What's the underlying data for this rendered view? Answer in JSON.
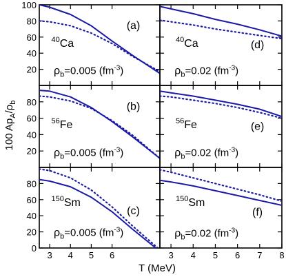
{
  "figure": {
    "ylabel": "100 Ap",
    "ylabel_sub1": "A",
    "ylabel_mid": "/ρ",
    "ylabel_sub2": "b",
    "xlabel": "T (MeV)"
  },
  "chart_data": [
    {
      "type": "line",
      "panel": "(a)",
      "nucleus_mass": "40",
      "nucleus": "Ca",
      "density_prefix": "ρ",
      "density_sub": "b",
      "density_value": "=0.005 (fm",
      "density_exp": "-3",
      "density_close": ")",
      "xlim": [
        2.5,
        8.3
      ],
      "ylim": [
        0,
        100
      ],
      "yticks": [
        20,
        40,
        60,
        80,
        100
      ],
      "yticklabels": [
        "20",
        "40",
        "60",
        "80",
        "100"
      ],
      "xticks": [
        3,
        4,
        5,
        6
      ],
      "xticklabels": [],
      "series": [
        {
          "style": "solid",
          "x": [
            2.5,
            3,
            4,
            5,
            6,
            7,
            8.3
          ],
          "y": [
            100,
            97,
            88,
            74,
            55,
            37,
            15
          ]
        },
        {
          "style": "dotted",
          "x": [
            2.5,
            3,
            4,
            5,
            6,
            7,
            8.3
          ],
          "y": [
            80,
            79,
            74,
            65,
            52,
            36,
            17
          ]
        }
      ]
    },
    {
      "type": "line",
      "panel": "(d)",
      "nucleus_mass": "40",
      "nucleus": "Ca",
      "density_prefix": "ρ",
      "density_sub": "b",
      "density_value": "=0.02 (fm",
      "density_exp": "-3",
      "density_close": ")",
      "xlim": [
        2.5,
        8
      ],
      "ylim": [
        0,
        100
      ],
      "yticks": [
        20,
        40,
        60,
        80,
        100
      ],
      "yticklabels": [],
      "xticks": [
        3,
        4,
        5,
        6,
        7,
        8
      ],
      "xticklabels": [],
      "series": [
        {
          "style": "solid",
          "x": [
            2.5,
            3,
            4,
            5,
            6,
            7,
            8
          ],
          "y": [
            98,
            95,
            89,
            82,
            76,
            69,
            61
          ]
        },
        {
          "style": "dotted",
          "x": [
            2.5,
            3,
            4,
            5,
            6,
            7,
            8
          ],
          "y": [
            81,
            79,
            75,
            70,
            66,
            62,
            58
          ]
        }
      ]
    },
    {
      "type": "line",
      "panel": "(b)",
      "nucleus_mass": "56",
      "nucleus": "Fe",
      "density_prefix": "ρ",
      "density_sub": "b",
      "density_value": "=0.005 (fm",
      "density_exp": "-3",
      "density_close": ")",
      "xlim": [
        2.5,
        8.3
      ],
      "ylim": [
        0,
        100
      ],
      "yticks": [
        20,
        40,
        60,
        80
      ],
      "yticklabels": [
        "20",
        "40",
        "60",
        "80"
      ],
      "xticks": [
        3,
        4,
        5,
        6
      ],
      "xticklabels": [],
      "series": [
        {
          "style": "solid",
          "x": [
            2.5,
            3,
            4,
            5,
            6,
            7,
            8.3
          ],
          "y": [
            94,
            93,
            86,
            73,
            56,
            37,
            11
          ]
        },
        {
          "style": "dotted",
          "x": [
            2.5,
            3,
            4,
            5,
            6,
            7,
            8.3
          ],
          "y": [
            87,
            86,
            81,
            72,
            57,
            39,
            11
          ]
        }
      ]
    },
    {
      "type": "line",
      "panel": "(e)",
      "nucleus_mass": "56",
      "nucleus": "Fe",
      "density_prefix": "ρ",
      "density_sub": "b",
      "density_value": "=0.02 (fm",
      "density_exp": "-3",
      "density_close": ")",
      "xlim": [
        2.5,
        8
      ],
      "ylim": [
        0,
        100
      ],
      "yticks": [
        20,
        40,
        60,
        80
      ],
      "yticklabels": [],
      "xticks": [
        3,
        4,
        5,
        6,
        7,
        8
      ],
      "xticklabels": [],
      "series": [
        {
          "style": "solid",
          "x": [
            2.5,
            3,
            4,
            5,
            6,
            7,
            8
          ],
          "y": [
            93,
            91,
            87,
            82,
            77,
            71,
            62
          ]
        },
        {
          "style": "dotted",
          "x": [
            2.5,
            3,
            4,
            5,
            6,
            7,
            8
          ],
          "y": [
            87,
            86,
            82,
            78,
            73,
            67,
            60
          ]
        }
      ]
    },
    {
      "type": "line",
      "panel": "(c)",
      "nucleus_mass": "150",
      "nucleus": "Sm",
      "density_prefix": "ρ",
      "density_sub": "b",
      "density_value": "=0.005 (fm",
      "density_exp": "-3",
      "density_close": ")",
      "xlim": [
        2.5,
        8.3
      ],
      "ylim": [
        0,
        100
      ],
      "yticks": [
        0,
        20,
        40,
        60,
        80
      ],
      "yticklabels": [
        "0",
        "20",
        "40",
        "60",
        "80"
      ],
      "xticks": [
        3,
        4,
        5,
        6
      ],
      "xticklabels": [
        "3",
        "4",
        "5",
        "6"
      ],
      "series": [
        {
          "style": "solid",
          "x": [
            2.5,
            3,
            4,
            5,
            6,
            7,
            8.1
          ],
          "y": [
            85,
            83,
            76,
            63,
            45,
            23,
            0
          ]
        },
        {
          "style": "dotted",
          "x": [
            2.5,
            3,
            4,
            5,
            6,
            7,
            8.2
          ],
          "y": [
            98,
            96,
            87,
            72,
            51,
            27,
            0
          ]
        }
      ]
    },
    {
      "type": "line",
      "panel": "(f)",
      "nucleus_mass": "150",
      "nucleus": "Sm",
      "density_prefix": "ρ",
      "density_sub": "b",
      "density_value": "=0.02 (fm",
      "density_exp": "-3",
      "density_close": ")",
      "xlim": [
        2.5,
        8
      ],
      "ylim": [
        0,
        100
      ],
      "yticks": [
        0,
        20,
        40,
        60,
        80
      ],
      "yticklabels": [],
      "xticks": [
        3,
        4,
        5,
        6,
        7,
        8
      ],
      "xticklabels": [
        "3",
        "4",
        "5",
        "6",
        "7",
        "8"
      ],
      "series": [
        {
          "style": "solid",
          "x": [
            2.5,
            3,
            4,
            5,
            6,
            7,
            8
          ],
          "y": [
            84,
            82,
            77,
            71,
            65,
            59,
            53
          ]
        },
        {
          "style": "dotted",
          "x": [
            2.5,
            3,
            4,
            5,
            6,
            7,
            8
          ],
          "y": [
            97,
            94,
            87,
            80,
            73,
            66,
            58
          ]
        }
      ]
    }
  ]
}
